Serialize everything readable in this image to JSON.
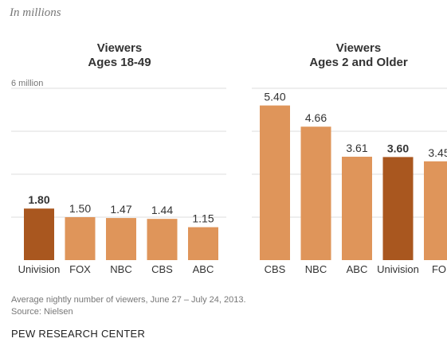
{
  "subtitle": "In millions",
  "note": "Average nightly number of viewers, June 27 – July 24, 2013.",
  "source": "Source: Nielsen",
  "org": "PEW RESEARCH CENTER",
  "colors": {
    "highlight": "#a9571f",
    "bar": "#df955a",
    "gridline": "#dedede"
  },
  "chart_data": [
    {
      "type": "bar",
      "title": [
        "Viewers",
        "Ages 18-49"
      ],
      "categories": [
        "Univision",
        "FOX",
        "NBC",
        "CBS",
        "ABC"
      ],
      "values": [
        1.8,
        1.5,
        1.47,
        1.44,
        1.15
      ],
      "value_labels": [
        "1.80",
        "1.50",
        "1.47",
        "1.44",
        "1.15"
      ],
      "highlight": "Univision",
      "ylim": [
        0,
        6
      ],
      "axis_label": "6 million",
      "grid": true
    },
    {
      "type": "bar",
      "title": [
        "Viewers",
        "Ages 2 and Older"
      ],
      "categories": [
        "CBS",
        "NBC",
        "ABC",
        "Univision",
        "FO"
      ],
      "values": [
        5.4,
        4.66,
        3.61,
        3.6,
        3.45
      ],
      "value_labels": [
        "5.40",
        "4.66",
        "3.61",
        "3.60",
        "3.45"
      ],
      "highlight": "Univision",
      "ylim": [
        0,
        6
      ],
      "grid": true
    }
  ]
}
